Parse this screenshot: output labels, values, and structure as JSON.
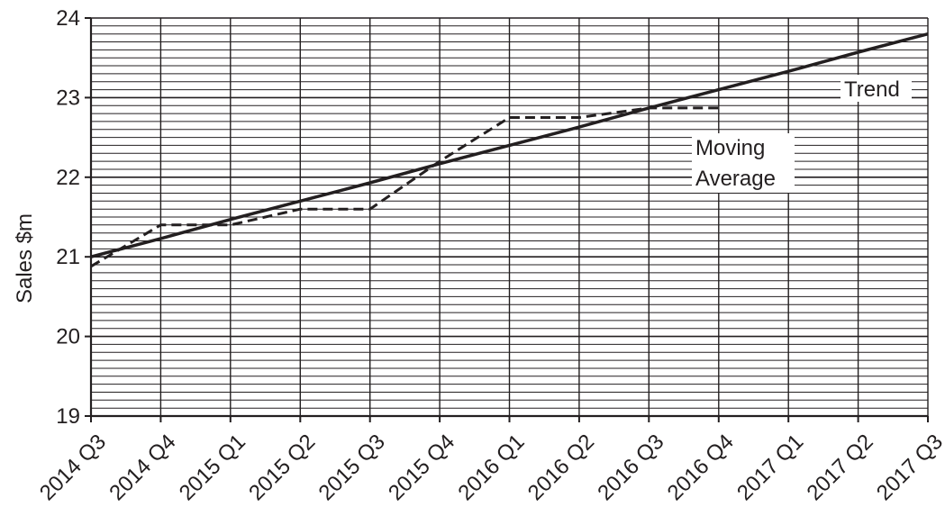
{
  "chart_data": {
    "type": "line",
    "title": "",
    "xlabel": "",
    "ylabel": "Sales $m",
    "categories": [
      "2014 Q3",
      "2014 Q4",
      "2015 Q1",
      "2015 Q2",
      "2015 Q3",
      "2015 Q4",
      "2016 Q1",
      "2016 Q2",
      "2016 Q3",
      "2016 Q4",
      "2017 Q1",
      "2017 Q2",
      "2017 Q3"
    ],
    "ylim": [
      19,
      24
    ],
    "yticks": [
      19,
      20,
      21,
      22,
      23,
      24
    ],
    "y_minor_step": 0.1,
    "grid": true,
    "series": [
      {
        "name": "Trend",
        "style": "solid",
        "values": [
          21.0,
          21.23,
          21.47,
          21.7,
          21.93,
          22.17,
          22.4,
          22.63,
          22.87,
          23.1,
          23.33,
          23.57,
          23.8
        ]
      },
      {
        "name": "Moving Average",
        "style": "dashed",
        "values": [
          20.88,
          21.4,
          21.4,
          21.6,
          21.6,
          22.2,
          22.75,
          22.75,
          22.87,
          22.87,
          null,
          null,
          null
        ]
      }
    ],
    "annotations": [
      {
        "text": "Trend",
        "series": "Trend"
      },
      {
        "text": "Moving\nAverage",
        "series": "Moving Average"
      }
    ],
    "colors": {
      "line": "#231f20",
      "grid": "#231f20",
      "background": "#ffffff"
    }
  }
}
